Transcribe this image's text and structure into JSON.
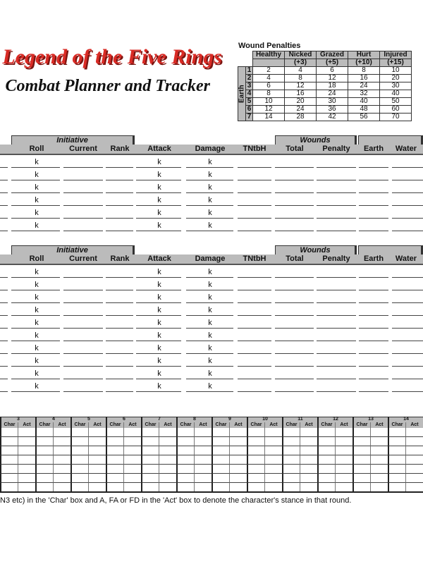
{
  "logo": {
    "line1": "Legend of the Five Rings",
    "line2": "Combat Planner and Tracker",
    "color": "#d92b25"
  },
  "wound_penalties": {
    "title": "Wound Penalties",
    "row_group_label": "Earth",
    "columns": [
      "Healthy",
      "Nicked",
      "Grazed",
      "Hurt",
      "Injured"
    ],
    "penalties": [
      "",
      "(+3)",
      "(+5)",
      "(+10)",
      "(+15)"
    ],
    "rows": [
      {
        "earth": "1",
        "values": [
          "2",
          "4",
          "6",
          "8",
          "10"
        ]
      },
      {
        "earth": "2",
        "values": [
          "4",
          "8",
          "12",
          "16",
          "20"
        ]
      },
      {
        "earth": "3",
        "values": [
          "6",
          "12",
          "18",
          "24",
          "30"
        ]
      },
      {
        "earth": "4",
        "values": [
          "8",
          "16",
          "24",
          "32",
          "40"
        ]
      },
      {
        "earth": "5",
        "values": [
          "10",
          "20",
          "30",
          "40",
          "50"
        ]
      },
      {
        "earth": "6",
        "values": [
          "12",
          "24",
          "36",
          "48",
          "60"
        ]
      },
      {
        "earth": "7",
        "values": [
          "14",
          "28",
          "42",
          "56",
          "70"
        ]
      }
    ]
  },
  "tracker": {
    "group_initiative": "Initiative",
    "group_wounds": "Wounds",
    "columns": [
      "Roll",
      "Current",
      "Rank",
      "Attack",
      "Damage",
      "TNtbH",
      "Total",
      "Penalty",
      "Earth",
      "Water"
    ],
    "roll_keep_marker": "k",
    "section1_rows": 6,
    "section2_rows": 10
  },
  "round_grid": {
    "rounds": [
      "3",
      "4",
      "5",
      "6",
      "7",
      "8",
      "9",
      "10",
      "11",
      "12",
      "13",
      "14"
    ],
    "sub_columns": [
      "Char",
      "Act"
    ],
    "rows": 7
  },
  "instructions": "N3 etc) in the 'Char' box and A, FA or FD in the 'Act' box to denote the character's stance in that round."
}
